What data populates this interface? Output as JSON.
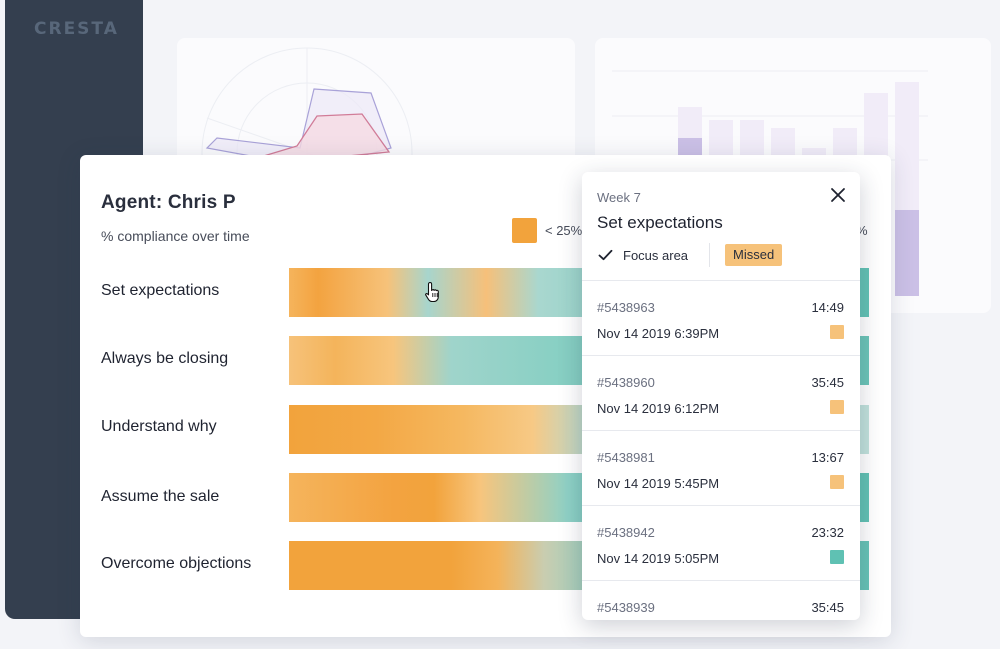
{
  "app": {
    "logo": "CRESTA"
  },
  "card": {
    "title": "Agent: Chris P",
    "subtitle": "% compliance over time",
    "legend": {
      "low_label": "< 25%",
      "high_label_fragment": "%",
      "low_color": "#f2a33c"
    },
    "behaviors": [
      {
        "label": "Set expectations"
      },
      {
        "label": "Always be closing"
      },
      {
        "label": "Understand why"
      },
      {
        "label": "Assume the sale"
      },
      {
        "label": "Overcome objections"
      }
    ]
  },
  "popover": {
    "week": "Week 7",
    "title": "Set expectations",
    "focus_label": "Focus area",
    "status_badge": "Missed",
    "conversations": [
      {
        "id": "#5438963",
        "duration": "14:49",
        "date": "Nov 14 2019 6:39PM",
        "color": "#f6c27a"
      },
      {
        "id": "#5438960",
        "duration": "35:45",
        "date": "Nov 14 2019 6:12PM",
        "color": "#f6c27a"
      },
      {
        "id": "#5438981",
        "duration": "13:67",
        "date": "Nov 14 2019 5:45PM",
        "color": "#f6c27a"
      },
      {
        "id": "#5438942",
        "duration": "23:32",
        "date": "Nov 14 2019 5:05PM",
        "color": "#5fc1b3"
      },
      {
        "id": "#5438939",
        "duration": "35:45",
        "date": "",
        "color": ""
      }
    ]
  },
  "colors": {
    "sidebar": "#343f4f",
    "orange": "#f2a33c",
    "light_orange": "#f6c27a",
    "teal": "#5fc1b3"
  }
}
